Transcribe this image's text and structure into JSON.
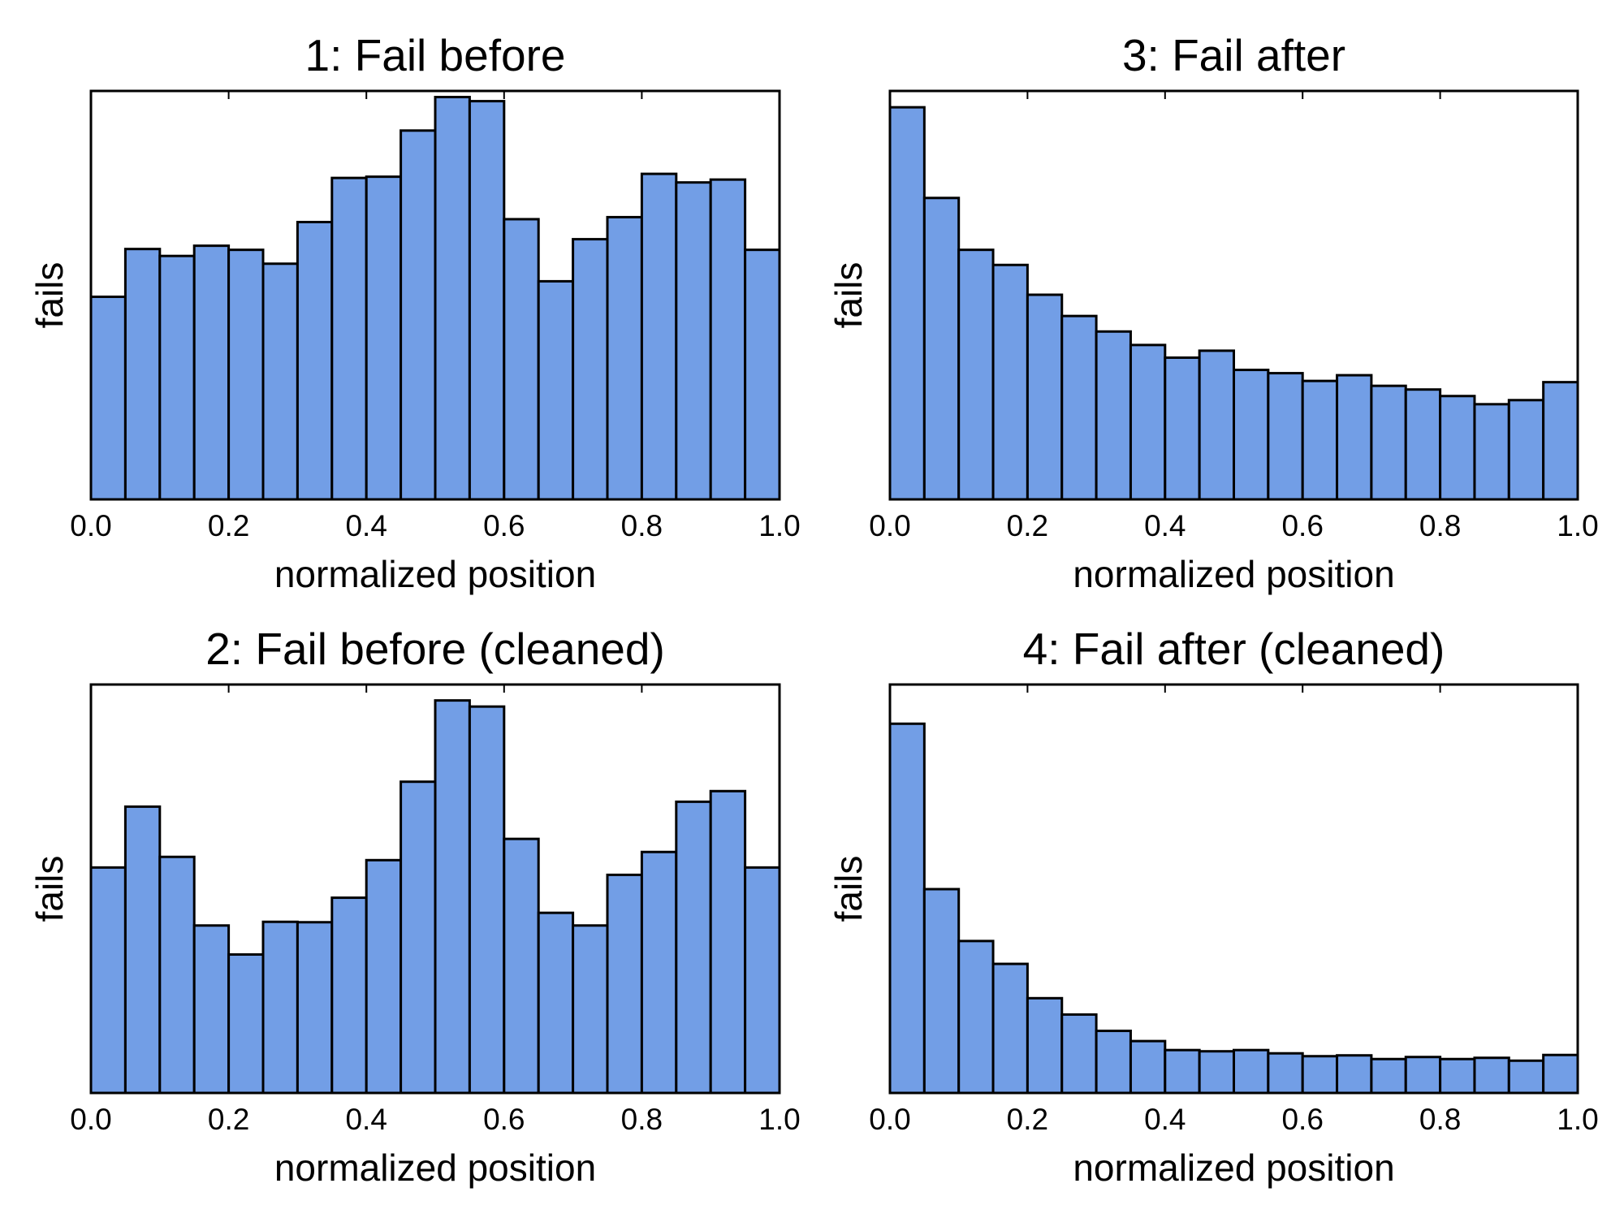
{
  "colors": {
    "bar_fill": "#729ee6",
    "bar_edge": "#000000",
    "background": "#ffffff"
  },
  "chart_data": [
    {
      "type": "bar",
      "title": "1: Fail before",
      "xlabel": "normalized position",
      "ylabel": "fails",
      "xlim": [
        0.0,
        1.0
      ],
      "x_ticks": [
        "0.0",
        "0.2",
        "0.4",
        "0.6",
        "0.8",
        "1.0"
      ],
      "y_ticks_shown": false,
      "bin_edges": [
        0.0,
        0.05,
        0.1,
        0.15,
        0.2,
        0.25,
        0.3,
        0.35,
        0.4,
        0.45,
        0.5,
        0.55,
        0.6,
        0.65,
        0.7,
        0.75,
        0.8,
        0.85,
        0.9,
        0.95,
        1.0
      ],
      "values": [
        49.6,
        61.3,
        59.6,
        62.1,
        61.1,
        57.7,
        67.9,
        78.7,
        79.0,
        90.3,
        98.5,
        97.5,
        68.6,
        53.4,
        63.7,
        69.1,
        79.7,
        77.6,
        78.3,
        61.1
      ],
      "ylim": [
        0,
        100
      ],
      "grid": false
    },
    {
      "type": "bar",
      "title": "3: Fail after",
      "xlabel": "normalized position",
      "ylabel": "fails",
      "xlim": [
        0.0,
        1.0
      ],
      "x_ticks": [
        "0.0",
        "0.2",
        "0.4",
        "0.6",
        "0.8",
        "1.0"
      ],
      "y_ticks_shown": false,
      "bin_edges": [
        0.0,
        0.05,
        0.1,
        0.15,
        0.2,
        0.25,
        0.3,
        0.35,
        0.4,
        0.45,
        0.5,
        0.55,
        0.6,
        0.65,
        0.7,
        0.75,
        0.8,
        0.85,
        0.9,
        0.95,
        1.0
      ],
      "values": [
        96.0,
        73.8,
        61.1,
        57.4,
        50.1,
        44.9,
        41.1,
        37.8,
        34.7,
        36.4,
        31.7,
        30.9,
        29.0,
        30.4,
        27.8,
        26.9,
        25.3,
        23.3,
        24.3,
        28.7
      ],
      "ylim": [
        0,
        100
      ],
      "grid": false
    },
    {
      "type": "bar",
      "title": "2: Fail before (cleaned)",
      "xlabel": "normalized position",
      "ylabel": "fails",
      "xlim": [
        0.0,
        1.0
      ],
      "x_ticks": [
        "0.0",
        "0.2",
        "0.4",
        "0.6",
        "0.8",
        "1.0"
      ],
      "y_ticks_shown": false,
      "bin_edges": [
        0.0,
        0.05,
        0.1,
        0.15,
        0.2,
        0.25,
        0.3,
        0.35,
        0.4,
        0.45,
        0.5,
        0.55,
        0.6,
        0.65,
        0.7,
        0.75,
        0.8,
        0.85,
        0.9,
        0.95,
        1.0
      ],
      "values": [
        55.2,
        70.1,
        57.8,
        41.0,
        33.9,
        41.9,
        41.8,
        47.8,
        57.0,
        76.2,
        96.1,
        94.6,
        62.2,
        44.1,
        41.0,
        53.4,
        59.0,
        71.3,
        73.9,
        55.2
      ],
      "ylim": [
        0,
        100
      ],
      "grid": false
    },
    {
      "type": "bar",
      "title": "4: Fail after (cleaned)",
      "xlabel": "normalized position",
      "ylabel": "fails",
      "xlim": [
        0.0,
        1.0
      ],
      "x_ticks": [
        "0.0",
        "0.2",
        "0.4",
        "0.6",
        "0.8",
        "1.0"
      ],
      "y_ticks_shown": false,
      "bin_edges": [
        0.0,
        0.05,
        0.1,
        0.15,
        0.2,
        0.25,
        0.3,
        0.35,
        0.4,
        0.45,
        0.5,
        0.55,
        0.6,
        0.65,
        0.7,
        0.75,
        0.8,
        0.85,
        0.9,
        0.95,
        1.0
      ],
      "values": [
        90.4,
        49.9,
        37.2,
        31.6,
        23.2,
        19.2,
        15.2,
        12.7,
        10.5,
        10.2,
        10.5,
        9.7,
        9.0,
        9.2,
        8.3,
        8.8,
        8.3,
        8.6,
        7.9,
        9.3
      ],
      "ylim": [
        0,
        100
      ],
      "grid": false
    }
  ]
}
